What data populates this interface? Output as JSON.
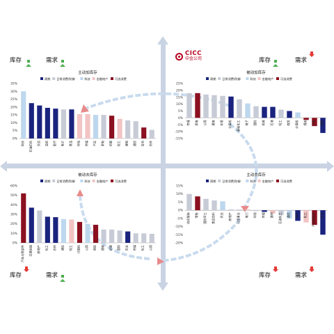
{
  "brand": {
    "name": "CICC",
    "subname": "中金公司",
    "color": "#b8001f"
  },
  "quadrant_tags": {
    "top_left": {
      "inventory": "库存",
      "demand": "需求",
      "inventory_dir": "up",
      "demand_dir": "up"
    },
    "top_right": {
      "inventory": "库存",
      "demand": "需求",
      "inventory_dir": "up",
      "demand_dir": "down"
    },
    "bottom_left": {
      "inventory": "库存",
      "demand": "需求",
      "inventory_dir": "down",
      "demand_dir": "up"
    },
    "bottom_right": {
      "inventory": "库存",
      "demand": "需求",
      "inventory_dir": "down",
      "demand_dir": "down"
    }
  },
  "legend": [
    {
      "name": "周期",
      "color": "#1a237e"
    },
    {
      "name": "日常消费/防御",
      "color": "#c7cbd6"
    },
    {
      "name": "科技",
      "color": "#bdd7ee"
    },
    {
      "name": "金融地产",
      "color": "#f2c4c4"
    },
    {
      "name": "可选消费",
      "color": "#8b1020"
    }
  ],
  "chart_data": [
    {
      "id": "active-restocking",
      "type": "bar",
      "title": "主动加库存",
      "ylim": [
        0,
        35
      ],
      "yticks": [
        0,
        5,
        10,
        15,
        20,
        25,
        30,
        35
      ],
      "ytick_labels": [
        "0%",
        "5%",
        "10%",
        "15%",
        "20%",
        "25%",
        "30%",
        "35%"
      ],
      "categories": [
        "科技",
        "石油石化",
        "交运",
        "造纸",
        "医疗",
        "电子",
        "食品",
        "环保",
        "传媒",
        "汽车",
        "家电",
        "纺服",
        "轻工",
        "建筑",
        "通信",
        "有色",
        "农林"
      ],
      "values": [
        30,
        22.5,
        21,
        19.5,
        19,
        18.5,
        18.5,
        15.5,
        15.5,
        15,
        15,
        14.5,
        12.5,
        11.5,
        11,
        7,
        5.5
      ],
      "groups": [
        2,
        0,
        0,
        0,
        0,
        1,
        0,
        3,
        3,
        2,
        1,
        4,
        3,
        1,
        1,
        4,
        1
      ]
    },
    {
      "id": "passive-restocking",
      "type": "bar",
      "title": "被动加库存",
      "ylim": [
        -15,
        25
      ],
      "yticks": [
        -15,
        -10,
        -5,
        0,
        5,
        10,
        15,
        20,
        25
      ],
      "ytick_labels": [
        "-15%",
        "-10%",
        "-5%",
        "0%",
        "5%",
        "10%",
        "15%",
        "20%",
        "25%"
      ],
      "categories": [
        "传媒",
        "家电",
        "公用",
        "建筑",
        "非银",
        "计算机",
        "基础化工",
        "电子",
        "国防",
        "机械",
        "石油",
        "轻工",
        "商贸",
        "计算机",
        "煤炭",
        "汽车",
        "钢铁"
      ],
      "values": [
        18,
        18,
        17,
        16.5,
        16,
        15.5,
        13.5,
        10.5,
        8.5,
        8,
        8,
        6,
        5,
        4,
        -1.5,
        -6,
        -11
      ],
      "groups": [
        1,
        4,
        1,
        1,
        1,
        0,
        1,
        2,
        1,
        0,
        0,
        1,
        0,
        2,
        4,
        4,
        0
      ]
    },
    {
      "id": "passive-destocking",
      "type": "bar",
      "title": "被动去库存",
      "ylim": [
        0,
        60
      ],
      "yticks": [
        0,
        10,
        20,
        30,
        40,
        50,
        60
      ],
      "ytick_labels": [
        "0%",
        "10%",
        "20%",
        "30%",
        "40%",
        "50%",
        "60%"
      ],
      "categories": [
        "汽车与零部件",
        "交通运输",
        "房地产",
        "化工",
        "农林",
        "通信",
        "轻工",
        "计算机",
        "公用",
        "商贸",
        "建筑",
        "纺服",
        "国防",
        "农业",
        "传媒",
        "化工",
        "公用"
      ],
      "values": [
        52,
        37,
        34,
        27.5,
        27,
        25,
        24.5,
        22,
        20,
        19,
        14,
        14,
        13,
        12,
        10,
        10,
        9.5
      ],
      "groups": [
        4,
        0,
        1,
        0,
        0,
        2,
        3,
        4,
        2,
        4,
        1,
        1,
        1,
        0,
        1,
        1,
        1
      ]
    },
    {
      "id": "active-destocking",
      "type": "bar",
      "title": "主动去库存",
      "ylim": [
        -20,
        15
      ],
      "yticks": [
        -20,
        -15,
        -10,
        -5,
        0,
        5,
        10,
        15
      ],
      "ytick_labels": [
        "-20%",
        "-15%",
        "-10%",
        "-5%",
        "0%",
        "5%",
        "10%",
        "15%"
      ],
      "categories": [
        "纺织服装",
        "零售",
        "国防军工",
        "食品饮料",
        "农业",
        "房地产",
        "公用事业",
        "电力",
        "环保",
        "传媒",
        "建材",
        "石油化工",
        "通信",
        "钢铁",
        "化工",
        "汽车零部件",
        "有色"
      ],
      "values": [
        10,
        8.5,
        7,
        6,
        5.5,
        0.5,
        0.5,
        0.5,
        -0.5,
        -1,
        -2,
        -3,
        -5,
        -6.5,
        -7.5,
        -9,
        -15
      ],
      "groups": [
        1,
        4,
        1,
        1,
        2,
        1,
        1,
        3,
        1,
        0,
        3,
        1,
        2,
        0,
        3,
        4,
        0
      ]
    }
  ]
}
